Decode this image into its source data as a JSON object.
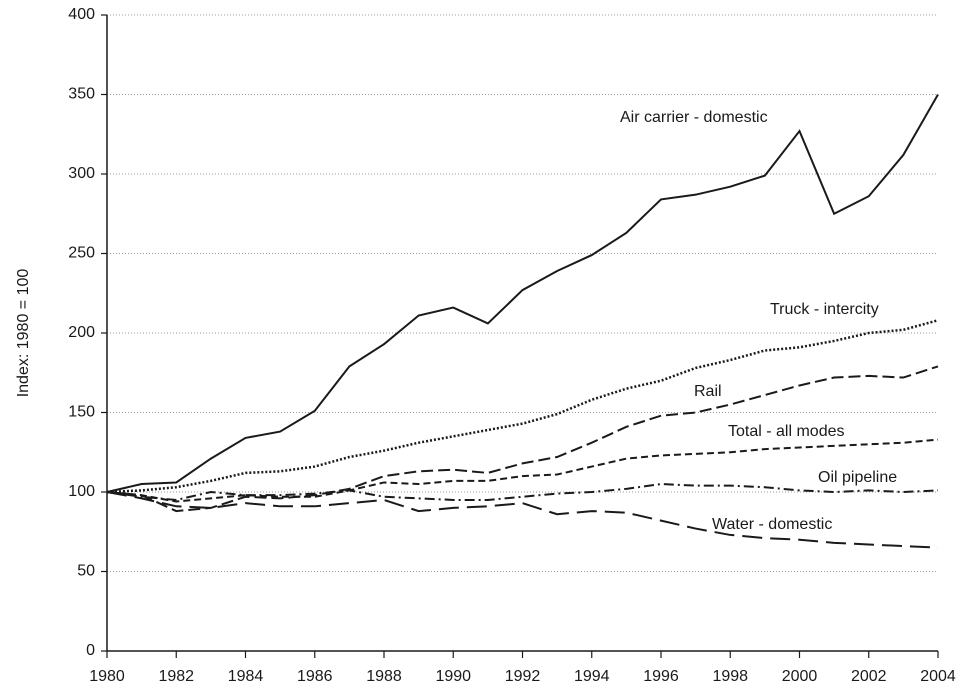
{
  "chart_data": {
    "type": "line",
    "ylabel": "Index: 1980 = 100",
    "x": [
      1980,
      1981,
      1982,
      1983,
      1984,
      1985,
      1986,
      1987,
      1988,
      1989,
      1990,
      1991,
      1992,
      1993,
      1994,
      1995,
      1996,
      1997,
      1998,
      1999,
      2000,
      2001,
      2002,
      2003,
      2004
    ],
    "xlim": [
      1980,
      2004
    ],
    "xticks": [
      1980,
      1982,
      1984,
      1986,
      1988,
      1990,
      1992,
      1994,
      1996,
      1998,
      2000,
      2002,
      2004
    ],
    "ylim": [
      0,
      400
    ],
    "yticks": [
      0,
      50,
      100,
      150,
      200,
      250,
      300,
      350,
      400
    ],
    "grid": true,
    "series": [
      {
        "name": "Air carrier - domestic",
        "color": "#1a1a1a",
        "dash": "solid",
        "values": [
          100,
          105,
          106,
          121,
          134,
          138,
          151,
          179,
          193,
          211,
          216,
          206,
          227,
          239,
          249,
          263,
          284,
          287,
          292,
          299,
          327,
          275,
          286,
          312,
          350
        ]
      },
      {
        "name": "Truck - intercity",
        "color": "#1a1a1a",
        "dash": "dotted",
        "values": [
          100,
          101,
          103,
          107,
          112,
          113,
          116,
          122,
          126,
          131,
          135,
          139,
          143,
          149,
          158,
          165,
          170,
          178,
          183,
          189,
          191,
          195,
          200,
          202,
          208
        ]
      },
      {
        "name": "Rail",
        "color": "#1a1a1a",
        "dash": "dashed",
        "values": [
          100,
          98,
          88,
          90,
          97,
          96,
          98,
          102,
          110,
          113,
          114,
          112,
          118,
          122,
          131,
          141,
          148,
          150,
          155,
          161,
          167,
          172,
          173,
          172,
          179
        ]
      },
      {
        "name": "Total - all modes",
        "color": "#1a1a1a",
        "dash": "shortdash",
        "values": [
          100,
          98,
          94,
          96,
          98,
          97,
          97,
          101,
          106,
          105,
          107,
          107,
          110,
          111,
          116,
          121,
          123,
          124,
          125,
          127,
          128,
          129,
          130,
          131,
          133
        ]
      },
      {
        "name": "Oil pipeline",
        "color": "#1a1a1a",
        "dash": "dashdot",
        "values": [
          100,
          97,
          95,
          100,
          98,
          98,
          99,
          101,
          97,
          96,
          95,
          95,
          97,
          99,
          100,
          102,
          105,
          104,
          104,
          103,
          101,
          100,
          101,
          100,
          101
        ]
      },
      {
        "name": "Water - domestic",
        "color": "#1a1a1a",
        "dash": "longdash",
        "values": [
          100,
          96,
          91,
          90,
          93,
          91,
          91,
          93,
          95,
          88,
          90,
          91,
          93,
          86,
          88,
          87,
          82,
          77,
          73,
          71,
          70,
          68,
          67,
          66,
          65
        ]
      }
    ]
  }
}
